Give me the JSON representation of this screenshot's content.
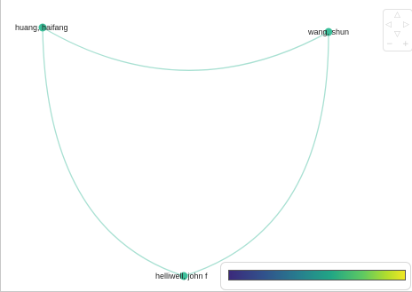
{
  "graph": {
    "nodes": [
      {
        "id": "huang",
        "label": "huang, haifang"
      },
      {
        "id": "wang",
        "label": "wang, shun"
      },
      {
        "id": "helliwell",
        "label": "helliwell, john f"
      }
    ],
    "edges": [
      {
        "from": "huang",
        "to": "wang"
      },
      {
        "from": "huang",
        "to": "helliwell"
      },
      {
        "from": "wang",
        "to": "helliwell"
      }
    ],
    "node_color": "#3cbf9a",
    "edge_color": "#a8e0d2"
  },
  "legend": {
    "colormap": "viridis",
    "colors": [
      "#3b2a7b",
      "#31528c",
      "#277f8e",
      "#21a685",
      "#5ec962",
      "#b4de2c",
      "#f0e724"
    ]
  },
  "navigation": {
    "icons": [
      "arrow-up-icon",
      "arrow-left-icon",
      "arrow-right-icon",
      "arrow-down-icon",
      "zoom-out-icon",
      "zoom-in-icon"
    ]
  }
}
